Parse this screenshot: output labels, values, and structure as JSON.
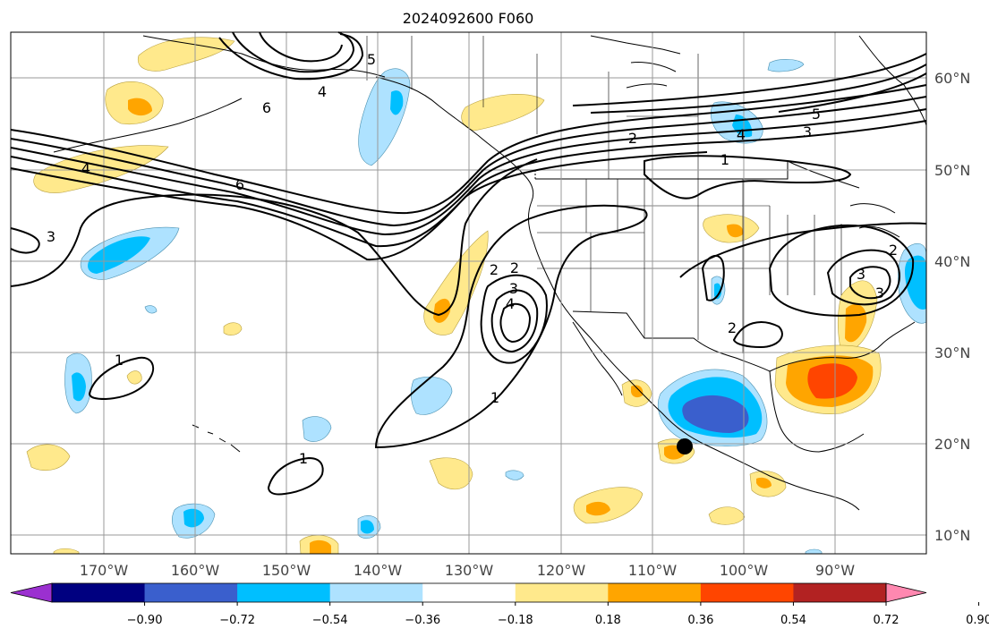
{
  "title": "2024092600 F060",
  "lon_labels": [
    "170°W",
    "160°W",
    "150°W",
    "140°W",
    "130°W",
    "120°W",
    "110°W",
    "100°W",
    "90°W"
  ],
  "lat_labels": [
    "60°N",
    "50°N",
    "40°N",
    "30°N",
    "20°N",
    "10°N"
  ],
  "contour_labels": [
    "6",
    "4",
    "5",
    "6",
    "4",
    "2",
    "5",
    "3",
    "4",
    "1",
    "3",
    "2",
    "3",
    "4",
    "2",
    "1",
    "1",
    "1",
    "2",
    "3",
    "3",
    "2"
  ],
  "colorbar": {
    "ticks": [
      "−0.90",
      "−0.72",
      "−0.54",
      "−0.36",
      "−0.18",
      "0.18",
      "0.36",
      "0.54",
      "0.72",
      "0.90"
    ],
    "colors": [
      "#9b30d0",
      "#000080",
      "#3a5fcd",
      "#00bfff",
      "#aee2ff",
      "#ffffff",
      "#ffe98c",
      "#ffa500",
      "#ff4500",
      "#b22222",
      "#ff88b0"
    ]
  },
  "colors": {
    "land_line": "#000000",
    "grid": "#999999",
    "contour": "#000000",
    "marker": "#000000"
  }
}
